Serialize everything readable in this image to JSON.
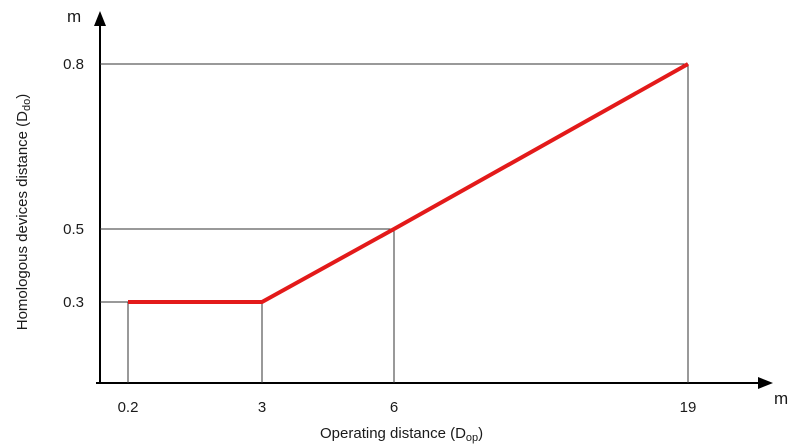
{
  "chart_data": {
    "type": "line",
    "xlabel": "Operating distance (D",
    "xlabel_sub": "op",
    "xlabel_end": ")",
    "ylabel": "Homologous devices distance (D",
    "ylabel_sub": "do",
    "ylabel_end": ")",
    "x_unit": "m",
    "y_unit": "m",
    "x_ticks": [
      "0.2",
      "3",
      "6",
      "19"
    ],
    "y_ticks": [
      "0.3",
      "0.5",
      "0.8"
    ],
    "x_scale": "piecewise (non-linear tick spacing)",
    "series": [
      {
        "color": "#e31a1a",
        "points": [
          {
            "x": 0.2,
            "y": 0.3
          },
          {
            "x": 3,
            "y": 0.3
          },
          {
            "x": 6,
            "y": 0.5
          },
          {
            "x": 19,
            "y": 0.8
          }
        ]
      }
    ],
    "guide_lines": true,
    "grid": false,
    "legend": "none"
  }
}
